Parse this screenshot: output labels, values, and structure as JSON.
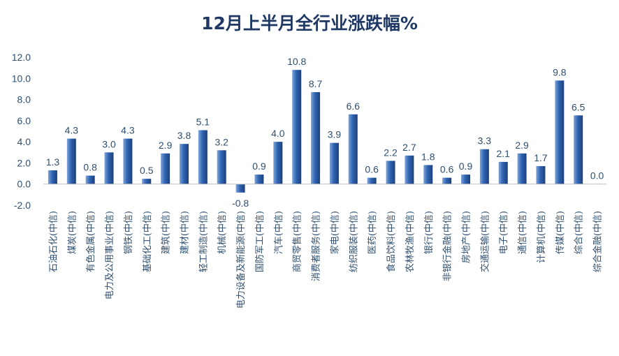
{
  "chart_data": {
    "type": "bar",
    "title": "12月上半月全行业涨跌幅%",
    "ylim": [
      -2.0,
      12.0
    ],
    "yticks": [
      "-2.0",
      "0.0",
      "2.0",
      "4.0",
      "6.0",
      "8.0",
      "10.0",
      "12.0"
    ],
    "grid": false,
    "legend": "none",
    "categories": [
      "石油石化(中信)",
      "煤炭(中信)",
      "有色金属(中信)",
      "电力及公用事业(中信)",
      "钢铁(中信)",
      "基础化工(中信)",
      "建筑(中信)",
      "建材(中信)",
      "轻工制造(中信)",
      "机械(中信)",
      "电力设备及新能源(中信)",
      "国防军工(中信)",
      "汽车(中信)",
      "商贸零售(中信)",
      "消费者服务(中信)",
      "家电(中信)",
      "纺织服装(中信)",
      "医药(中信)",
      "食品饮料(中信)",
      "农林牧渔(中信)",
      "银行(中信)",
      "非银行金融(中信)",
      "房地产(中信)",
      "交通运输(中信)",
      "电子(中信)",
      "通信(中信)",
      "计算机(中信)",
      "传媒(中信)",
      "综合(中信)",
      "综合金融(中信)"
    ],
    "values": [
      1.3,
      4.3,
      0.8,
      3.0,
      4.3,
      0.5,
      2.9,
      3.8,
      5.1,
      3.2,
      -0.8,
      0.9,
      4.0,
      10.8,
      8.7,
      3.9,
      6.6,
      0.6,
      2.2,
      2.7,
      1.8,
      0.6,
      0.9,
      3.3,
      2.1,
      2.9,
      1.7,
      9.8,
      6.5,
      0.0
    ],
    "value_labels": [
      "1.3",
      "4.3",
      "0.8",
      "3.0",
      "4.3",
      "0.5",
      "2.9",
      "3.8",
      "5.1",
      "3.2",
      "-0.8",
      "0.9",
      "4.0",
      "10.8",
      "8.7",
      "3.9",
      "6.6",
      "0.6",
      "2.2",
      "2.7",
      "1.8",
      "0.6",
      "0.9",
      "3.3",
      "2.1",
      "2.9",
      "1.7",
      "9.8",
      "6.5",
      "0.0"
    ],
    "colors": {
      "bar_top": "#7fa4d8",
      "bar_mid": "#2f64b3",
      "bar_bottom": "#1d3f7a",
      "text": "#2f4f6f",
      "title": "#1f3864",
      "axis": "#bfbfbf"
    }
  }
}
